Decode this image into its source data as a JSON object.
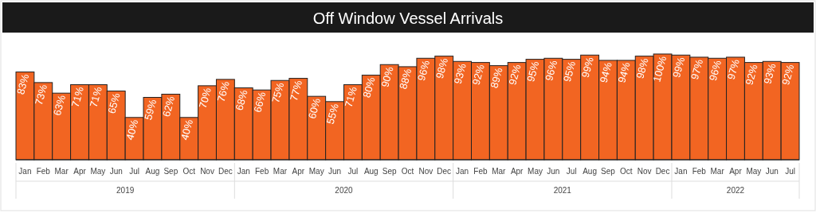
{
  "chart_data": {
    "type": "bar",
    "title": "Off Window Vessel Arrivals",
    "categories": [
      "Jan",
      "Feb",
      "Mar",
      "Apr",
      "May",
      "Jun",
      "Jul",
      "Aug",
      "Sep",
      "Oct",
      "Nov",
      "Dec",
      "Jan",
      "Feb",
      "Mar",
      "Apr",
      "May",
      "Jun",
      "Jul",
      "Aug",
      "Sep",
      "Oct",
      "Nov",
      "Dec",
      "Jan",
      "Feb",
      "Mar",
      "Apr",
      "May",
      "Jun",
      "Jul",
      "Aug",
      "Sep",
      "Oct",
      "Nov",
      "Dec",
      "Jan",
      "Feb",
      "Mar",
      "Apr",
      "May",
      "Jun",
      "Jul"
    ],
    "annotations": [
      "2019",
      "2020",
      "2021",
      "2022"
    ],
    "values": [
      83,
      73,
      63,
      71,
      71,
      65,
      40,
      59,
      62,
      40,
      70,
      76,
      68,
      66,
      75,
      77,
      60,
      55,
      71,
      80,
      90,
      88,
      96,
      98,
      93,
      92,
      89,
      92,
      95,
      96,
      95,
      99,
      94,
      94,
      98,
      100,
      99,
      97,
      96,
      97,
      92,
      93,
      92
    ],
    "value_labels": [
      "83%",
      "73%",
      "63%",
      "71%",
      "71%",
      "65%",
      "40%",
      "59%",
      "62%",
      "40%",
      "70%",
      "76%",
      "68%",
      "66%",
      "75%",
      "77%",
      "60%",
      "55%",
      "71%",
      "80%",
      "90%",
      "88%",
      "96%",
      "98%",
      "93%",
      "92%",
      "89%",
      "92%",
      "95%",
      "96%",
      "95%",
      "99%",
      "94%",
      "94%",
      "98%",
      "100%",
      "99%",
      "97%",
      "96%",
      "97%",
      "92%",
      "93%",
      "92%"
    ],
    "color": "#f26522"
  }
}
